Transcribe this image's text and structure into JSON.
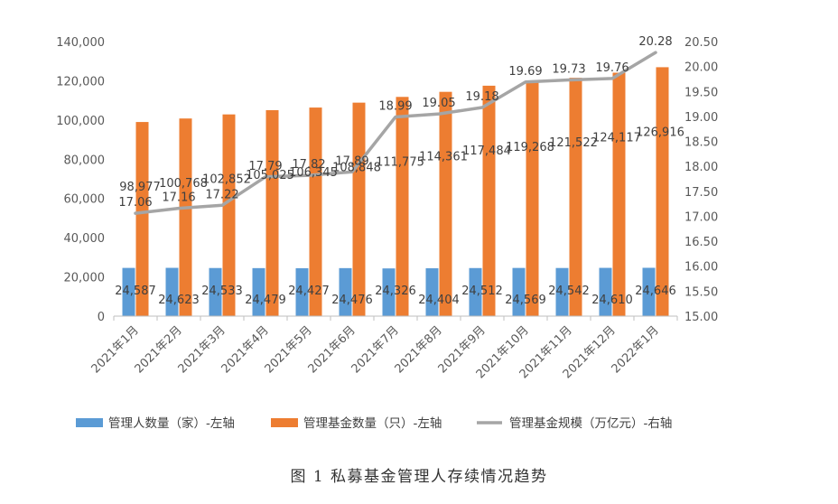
{
  "chart_data": {
    "type": "bar",
    "categories": [
      "2021年1月",
      "2021年2月",
      "2021年3月",
      "2021年4月",
      "2021年5月",
      "2021年6月",
      "2021年7月",
      "2021年8月",
      "2021年9月",
      "2021年10月",
      "2021年11月",
      "2021年12月",
      "2022年1月"
    ],
    "series": [
      {
        "name": "管理人数量（家）-左轴",
        "type": "bar",
        "axis": "left",
        "color": "#5b9bd5",
        "values": [
          24587,
          24623,
          24533,
          24479,
          24427,
          24476,
          24326,
          24404,
          24512,
          24569,
          24542,
          24610,
          24646
        ],
        "labels": [
          "24,587",
          "24,623",
          "24,533",
          "24,479",
          "24,427",
          "24,476",
          "24,326",
          "24,404",
          "24,512",
          "24,569",
          "24,542",
          "24,610",
          "24,646"
        ]
      },
      {
        "name": "管理基金数量（只）-左轴",
        "type": "bar",
        "axis": "left",
        "color": "#ed7d31",
        "values": [
          98977,
          100768,
          102852,
          105025,
          106345,
          108848,
          111775,
          114361,
          117484,
          119268,
          121522,
          124117,
          126916
        ],
        "labels": [
          "98,977",
          "100,768",
          "102,852",
          "105,025",
          "106,345",
          "108,848",
          "111,775",
          "114,361",
          "117,484",
          "119,268",
          "121,522",
          "124,117",
          "126,916"
        ]
      },
      {
        "name": "管理基金规模（万亿元）-右轴",
        "type": "line",
        "axis": "right",
        "color": "#a5a5a5",
        "values": [
          17.06,
          17.16,
          17.22,
          17.79,
          17.82,
          17.89,
          18.99,
          19.05,
          19.18,
          19.69,
          19.73,
          19.76,
          20.28
        ],
        "labels": [
          "17.06",
          "17.16",
          "17.22",
          "17.79",
          "17.82",
          "17.89",
          "18.99",
          "19.05",
          "19.18",
          "19.69",
          "19.73",
          "19.76",
          "20.28"
        ]
      }
    ],
    "y_left": {
      "ylim": [
        0,
        140000
      ],
      "ticks": [
        "0",
        "20,000",
        "40,000",
        "60,000",
        "80,000",
        "100,000",
        "120,000",
        "140,000"
      ]
    },
    "y_right": {
      "ylim": [
        15,
        20.5
      ],
      "ticks": [
        "15.00",
        "15.50",
        "16.00",
        "16.50",
        "17.00",
        "17.50",
        "18.00",
        "18.50",
        "19.00",
        "19.50",
        "20.00",
        "20.50"
      ]
    },
    "grid": false,
    "legend_position": "bottom"
  },
  "caption": "图 1  私募基金管理人存续情况趋势"
}
